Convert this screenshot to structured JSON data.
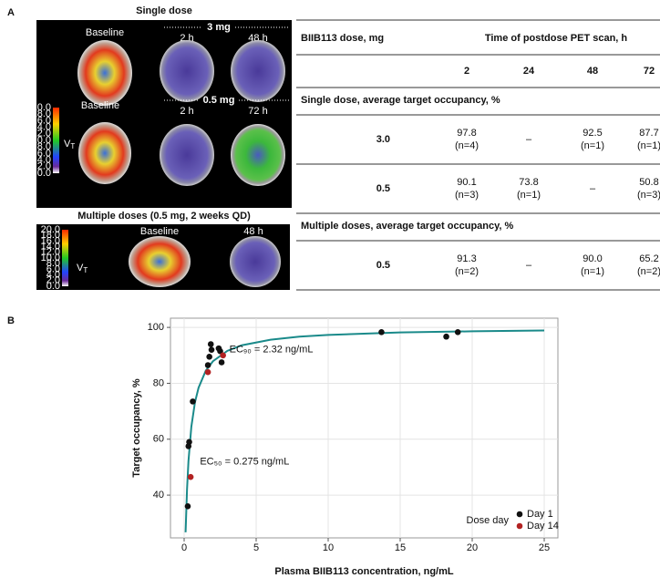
{
  "panel_a": {
    "label": "A",
    "single_title": "Single dose",
    "baseline": "Baseline",
    "dose_3": "3 mg",
    "dose_05": "0.5 mg",
    "h2": "2 h",
    "h48": "48 h",
    "h72": "72 h",
    "multi_title": "Multiple doses (0.5 mg, 2 weeks QD)",
    "vt": {
      "main": "V",
      "sub": "T"
    },
    "colorbar_ticks": [
      "20.0",
      "18.0",
      "16.0",
      "14.0",
      "12.0",
      "10.0",
      "8.0",
      "6.0",
      "4.0",
      "2.0",
      "0.0"
    ]
  },
  "table": {
    "dose_label": "BIIB113 dose, mg",
    "time_label": "Time of postdose PET scan, h",
    "times": [
      "2",
      "24",
      "48",
      "72"
    ],
    "sections": [
      {
        "title": "Single dose, average target occupancy, %",
        "rows": [
          {
            "dose": "3.0",
            "cells": [
              [
                "97.8",
                "(n=4)"
              ],
              [
                "–"
              ],
              [
                "92.5",
                "(n=1)"
              ],
              [
                "87.7",
                "(n=1)"
              ]
            ]
          },
          {
            "dose": "0.5",
            "cells": [
              [
                "90.1",
                "(n=3)"
              ],
              [
                "73.8",
                "(n=1)"
              ],
              [
                "–"
              ],
              [
                "50.8",
                "(n=3)"
              ]
            ]
          }
        ]
      },
      {
        "title": "Multiple doses, average target occupancy, %",
        "rows": [
          {
            "dose": "0.5",
            "cells": [
              [
                "91.3",
                "(n=2)"
              ],
              [
                "–"
              ],
              [
                "90.0",
                "(n=1)"
              ],
              [
                "65.2",
                "(n=2)"
              ]
            ]
          }
        ]
      }
    ]
  },
  "chart_data": {
    "type": "scatter",
    "panel_label": "B",
    "x_label": "Plasma BIIB113 concentration, ng/mL",
    "y_label": "Target occupancy, %",
    "xlim": [
      -0.95,
      25.95
    ],
    "ylim": [
      24.7,
      103.3
    ],
    "xticks": [
      0,
      5,
      10,
      15,
      20,
      25
    ],
    "yticks": [
      40,
      60,
      80,
      100
    ],
    "grid": true,
    "legend_title": "Dose day",
    "legend_position": "lower right",
    "series": [
      {
        "name": "Day 1",
        "color": "#111111",
        "x": [
          0.25,
          0.3,
          0.35,
          0.6,
          1.65,
          1.75,
          1.85,
          1.9,
          2.4,
          2.5,
          2.6,
          13.7,
          18.2,
          19.0
        ],
        "values": [
          36,
          57.5,
          59,
          73.5,
          86.5,
          89.5,
          94,
          92,
          92.5,
          91.5,
          87.5,
          98.3,
          96.7,
          98.3
        ]
      },
      {
        "name": "Day 14",
        "color": "#b22222",
        "x": [
          0.45,
          1.65,
          2.7
        ],
        "values": [
          46.5,
          84,
          90
        ]
      }
    ],
    "fit": {
      "color": "#1a8a8a",
      "x": [
        0.1,
        0.2,
        0.3,
        0.5,
        0.75,
        1,
        1.5,
        2,
        3,
        4,
        6,
        8,
        10,
        15,
        20,
        25
      ],
      "values": [
        26.7,
        42.1,
        52.2,
        64.5,
        73.2,
        78.4,
        84.5,
        87.9,
        91.6,
        93.6,
        95.6,
        96.7,
        97.3,
        98.2,
        98.6,
        98.9
      ]
    },
    "annotations": [
      {
        "text": "EC₉₀ = 2.32 ng/mL",
        "x": 2.32,
        "y": 90
      },
      {
        "text": "EC₅₀ = 0.275 ng/mL",
        "x": 0.275,
        "y": 50
      }
    ]
  }
}
